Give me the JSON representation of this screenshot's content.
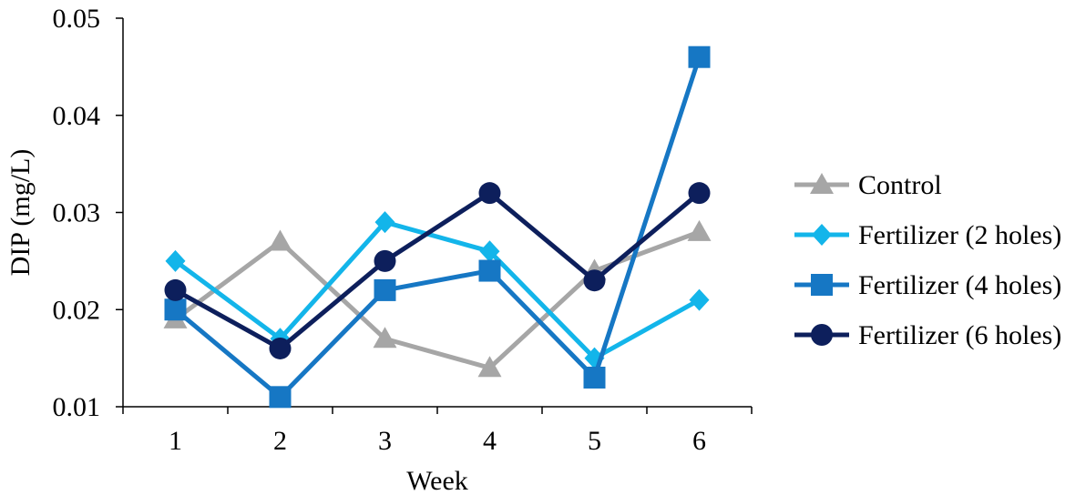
{
  "chart_data": {
    "type": "line",
    "title": "",
    "xlabel": "Week",
    "ylabel": "DIP (mg/L)",
    "categories": [
      "1",
      "2",
      "3",
      "4",
      "5",
      "6"
    ],
    "yticks": [
      "0.01",
      "0.02",
      "0.03",
      "0.04",
      "0.05"
    ],
    "ylim": [
      0.01,
      0.05
    ],
    "grid": false,
    "legend_position": "right",
    "series": [
      {
        "name": "Control",
        "color": "#a6a6a6",
        "marker": "triangle",
        "values": [
          0.019,
          0.027,
          0.017,
          0.014,
          0.024,
          0.028
        ]
      },
      {
        "name": "Fertilizer (2 holes)",
        "color": "#13b5ea",
        "marker": "diamond",
        "values": [
          0.025,
          0.017,
          0.029,
          0.026,
          0.015,
          0.021
        ]
      },
      {
        "name": "Fertilizer (4 holes)",
        "color": "#1677c4",
        "marker": "square",
        "values": [
          0.02,
          0.011,
          0.022,
          0.024,
          0.013,
          0.046
        ]
      },
      {
        "name": "Fertilizer (6 holes)",
        "color": "#0d1f5c",
        "marker": "circle",
        "values": [
          0.022,
          0.016,
          0.025,
          0.032,
          0.023,
          0.032
        ]
      }
    ]
  }
}
